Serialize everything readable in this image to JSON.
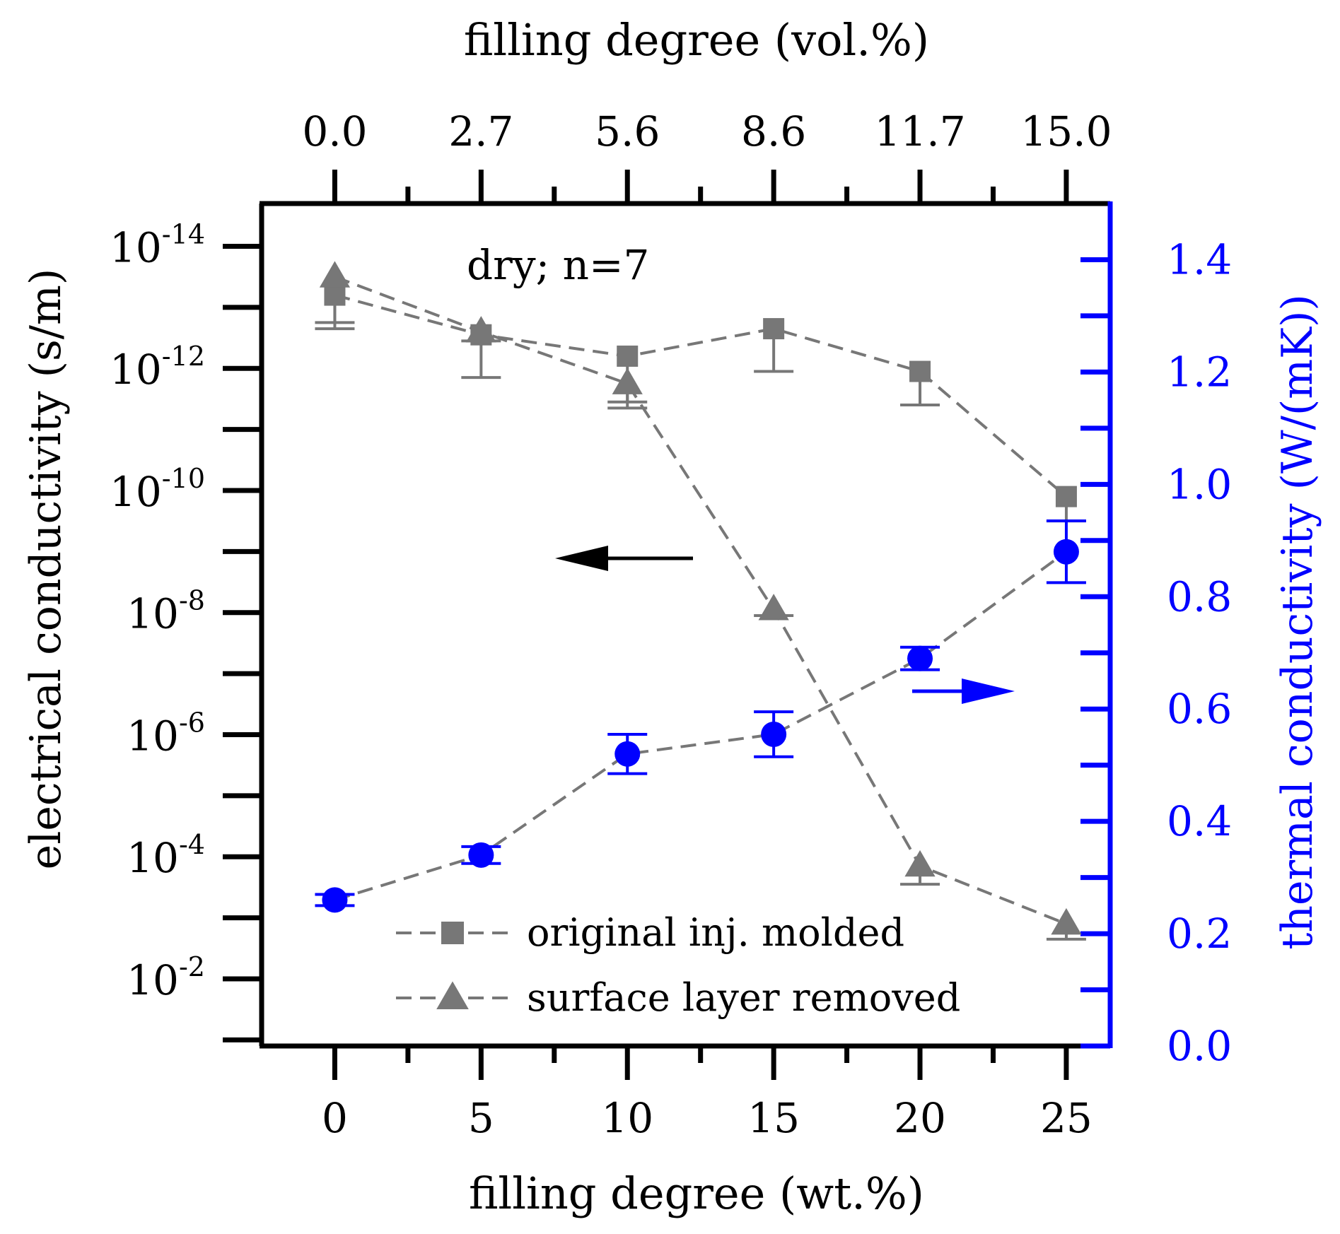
{
  "chart_data": {
    "type": "line",
    "annotation": "dry; n=7",
    "x": [
      0,
      5,
      10,
      15,
      20,
      25
    ],
    "xlabel_bottom": "filling degree (wt.%)",
    "x_ticklabels_bottom": [
      "0",
      "5",
      "10",
      "15",
      "20",
      "25"
    ],
    "xlabel_top": "filling degree (vol.%)",
    "x_ticklabels_top": [
      "0.0",
      "2.7",
      "5.6",
      "8.6",
      "11.7",
      "15.0"
    ],
    "xlim": [
      -2.5,
      26.5
    ],
    "y_left": {
      "label": "electrical conductivity (s/m)",
      "scale": "log",
      "inverted": true,
      "ticks_exp": [
        -14,
        -12,
        -10,
        -8,
        -6,
        -4,
        -2
      ],
      "tick_base": "10",
      "lim_exp": [
        -14.7,
        -0.9
      ]
    },
    "y_right": {
      "label": "thermal conductivity (W/(mK))",
      "ticks": [
        "0.0",
        "0.2",
        "0.4",
        "0.6",
        "0.8",
        "1.0",
        "1.2",
        "1.4"
      ],
      "lim": [
        0.0,
        1.5
      ],
      "color": "#0000ff"
    },
    "series": [
      {
        "name": "original inj. molded",
        "marker": "square",
        "color": "#777777",
        "axis": "left",
        "x": [
          0,
          5,
          10,
          15,
          20,
          25
        ],
        "values_exp": [
          -13.2,
          -12.55,
          -12.2,
          -12.65,
          -11.95,
          -9.9
        ],
        "error_exp": [
          -12.65,
          -11.85,
          -11.45,
          -11.95,
          -11.4,
          -9.5
        ]
      },
      {
        "name": "surface layer removed",
        "marker": "triangle",
        "color": "#777777",
        "axis": "left",
        "x": [
          0,
          5,
          10,
          15,
          20,
          25
        ],
        "values_exp": [
          -13.5,
          -12.6,
          -11.75,
          -8.05,
          -3.85,
          -2.9
        ],
        "error_exp": [
          -12.75,
          -12.45,
          -11.35,
          -7.95,
          -3.55,
          -2.65
        ]
      },
      {
        "name": "thermal conductivity",
        "marker": "circle",
        "color": "#0000ff",
        "axis": "right",
        "x": [
          0,
          5,
          10,
          15,
          20,
          25
        ],
        "values": [
          0.26,
          0.34,
          0.52,
          0.555,
          0.69,
          0.88
        ],
        "error": [
          0.01,
          0.015,
          0.035,
          0.04,
          0.02,
          0.055
        ]
      }
    ],
    "legend": {
      "position": "bottom-center",
      "entries": [
        "original inj. molded",
        "surface layer removed"
      ]
    },
    "arrows": [
      {
        "direction": "left",
        "color": "#000000",
        "points_to": "left axis"
      },
      {
        "direction": "right",
        "color": "#0000ff",
        "points_to": "right axis"
      }
    ]
  }
}
